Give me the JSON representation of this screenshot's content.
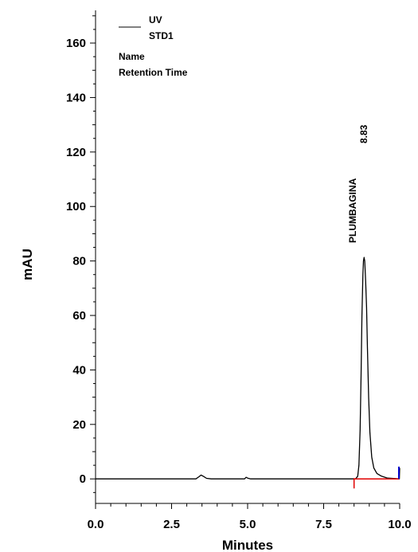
{
  "chart_data": {
    "type": "line",
    "xlabel": "Minutes",
    "ylabel": "mAU",
    "xlim": [
      0.0,
      10.0
    ],
    "ylim": [
      -9,
      172
    ],
    "x_ticks": [
      0.0,
      2.5,
      5.0,
      7.5,
      10.0
    ],
    "x_tick_labels": [
      "0.0",
      "2.5",
      "5.0",
      "7.5",
      "10.0"
    ],
    "y_ticks": [
      0,
      20,
      40,
      60,
      80,
      100,
      120,
      140,
      160
    ],
    "y_tick_labels": [
      "0",
      "20",
      "40",
      "60",
      "80",
      "100",
      "120",
      "140",
      "160"
    ],
    "grid": false,
    "legend": {
      "placement": "top-left",
      "lines": [
        "UV",
        "STD1",
        "Name",
        "Retention Time"
      ]
    },
    "series": [
      {
        "name": "UV",
        "color": "#000000",
        "x": [
          0.0,
          3.3,
          3.4,
          3.47,
          3.55,
          3.65,
          3.8,
          4.9,
          4.95,
          5.0,
          5.1,
          8.55,
          8.62,
          8.66,
          8.7,
          8.73,
          8.76,
          8.79,
          8.81,
          8.83,
          8.85,
          8.88,
          8.91,
          8.94,
          8.98,
          9.02,
          9.08,
          9.15,
          9.25,
          9.4,
          9.6,
          9.99,
          10.0
        ],
        "y": [
          0.0,
          0.0,
          0.8,
          1.4,
          0.9,
          0.2,
          0.0,
          0.0,
          0.6,
          0.3,
          0.0,
          0.0,
          1.0,
          5.0,
          18.0,
          38.0,
          60.0,
          75.0,
          80.0,
          81.3,
          80.0,
          73.0,
          63.0,
          48.0,
          30.0,
          17.0,
          8.0,
          4.0,
          2.0,
          1.0,
          0.3,
          0.0,
          4.0
        ]
      }
    ],
    "peak_annotations": [
      {
        "x": 8.83,
        "y": 81.3,
        "name": "PLUMBAGINA",
        "retention_time": "8.83"
      }
    ],
    "baseline": {
      "color": "#e00000",
      "start": 8.5,
      "end": 9.99,
      "marker_color": "#0000cc"
    }
  }
}
